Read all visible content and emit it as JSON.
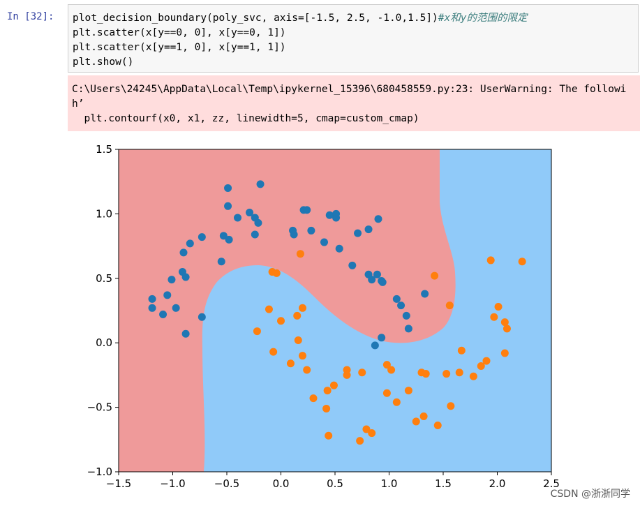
{
  "cell": {
    "prompt": "In [32]:",
    "code": [
      "plot_decision_boundary(poly_svc, axis=[-1.5, 2.5, -1.0,1.5])",
      "plt.scatter(x[y==0, 0], x[y==0, 1])",
      "plt.scatter(x[y==1, 0], x[y==1, 1])",
      "plt.show()"
    ],
    "comment": "#x和y的范围的限定"
  },
  "output": {
    "lines": [
      "C:\\Users\\24245\\AppData\\Local\\Temp\\ipykernel_15396\\680458559.py:23: UserWarning: The followi",
      "h’",
      "  plt.contourf(x0, x1, zz, linewidth=5, cmap=custom_cmap)"
    ]
  },
  "chart_data": {
    "type": "scatter",
    "xlim": [
      -1.5,
      2.5
    ],
    "ylim": [
      -1.0,
      1.5
    ],
    "xticks": [
      {
        "value": -1.5,
        "label": "−1.5"
      },
      {
        "value": -1.0,
        "label": "−1.0"
      },
      {
        "value": -0.5,
        "label": "−0.5"
      },
      {
        "value": 0,
        "label": "0.0"
      },
      0.5,
      {
        "value": 1,
        "label": "1.0"
      },
      1.5,
      {
        "value": 2,
        "label": "2.0"
      },
      2.5
    ],
    "yticks": [
      {
        "value": -1.0,
        "label": "−1.0"
      },
      {
        "value": -0.5,
        "label": "−0.5"
      },
      {
        "value": 0,
        "label": "0.0"
      },
      0.5,
      {
        "value": 1,
        "label": "1.0"
      },
      1.5
    ],
    "series": [
      {
        "color": "#1f77b4",
        "x": [
          -1.19,
          -1.19,
          -1.09,
          -1.05,
          -1.01,
          -0.97,
          -0.91,
          -0.88,
          -0.9,
          -0.84,
          -0.73,
          -0.88,
          -0.73,
          -0.55,
          -0.53,
          -0.48,
          -0.49,
          -0.49,
          -0.4,
          -0.29,
          -0.24,
          -0.21,
          -0.24,
          -0.19,
          0.11,
          0.12,
          0.21,
          0.24,
          0.28,
          0.4,
          0.45,
          0.51,
          0.51,
          0.54,
          0.66,
          0.71,
          0.81,
          0.9,
          0.81,
          0.84,
          0.89,
          0.93,
          0.94,
          1.07,
          1.11,
          1.16,
          1.18,
          1.33,
          0.93,
          0.87
        ],
        "values": [
          0.34,
          0.27,
          0.22,
          0.37,
          0.49,
          0.27,
          0.55,
          0.51,
          0.7,
          0.77,
          0.82,
          0.07,
          0.2,
          0.63,
          0.83,
          0.8,
          1.2,
          1.06,
          0.97,
          1.01,
          0.97,
          0.93,
          0.84,
          1.23,
          0.87,
          0.84,
          1.03,
          1.03,
          0.87,
          0.78,
          0.99,
          1.0,
          0.97,
          0.73,
          0.6,
          0.85,
          0.88,
          0.96,
          0.53,
          0.49,
          0.53,
          0.48,
          0.47,
          0.34,
          0.29,
          0.21,
          0.11,
          0.38,
          0.04,
          -0.02
        ]
      },
      {
        "color": "#ff7f0e",
        "x": [
          0.18,
          -0.08,
          -0.04,
          -0.11,
          -0.22,
          0.0,
          0.15,
          0.2,
          0.16,
          -0.07,
          0.09,
          0.2,
          0.24,
          0.3,
          0.43,
          0.49,
          0.42,
          0.44,
          0.61,
          0.61,
          0.75,
          0.73,
          0.79,
          0.84,
          0.98,
          1.02,
          0.98,
          1.07,
          1.18,
          1.25,
          1.32,
          1.3,
          1.34,
          1.45,
          1.53,
          1.56,
          1.57,
          1.42,
          1.65,
          1.67,
          1.78,
          1.85,
          1.9,
          1.94,
          1.97,
          2.01,
          2.07,
          2.07,
          2.09,
          2.23
        ],
        "values": [
          0.69,
          0.55,
          0.54,
          0.26,
          0.09,
          0.17,
          0.21,
          0.27,
          0.02,
          -0.07,
          -0.16,
          -0.1,
          -0.21,
          -0.43,
          -0.37,
          -0.33,
          -0.51,
          -0.72,
          -0.21,
          -0.25,
          -0.23,
          -0.76,
          -0.67,
          -0.7,
          -0.17,
          -0.21,
          -0.39,
          -0.46,
          -0.37,
          -0.61,
          -0.57,
          -0.23,
          -0.24,
          -0.64,
          -0.24,
          0.29,
          -0.49,
          0.52,
          -0.23,
          -0.06,
          -0.26,
          -0.18,
          -0.14,
          0.64,
          0.2,
          0.28,
          0.16,
          -0.08,
          0.11,
          0.63
        ]
      }
    ]
  },
  "watermark": "CSDN @浙浙同学"
}
